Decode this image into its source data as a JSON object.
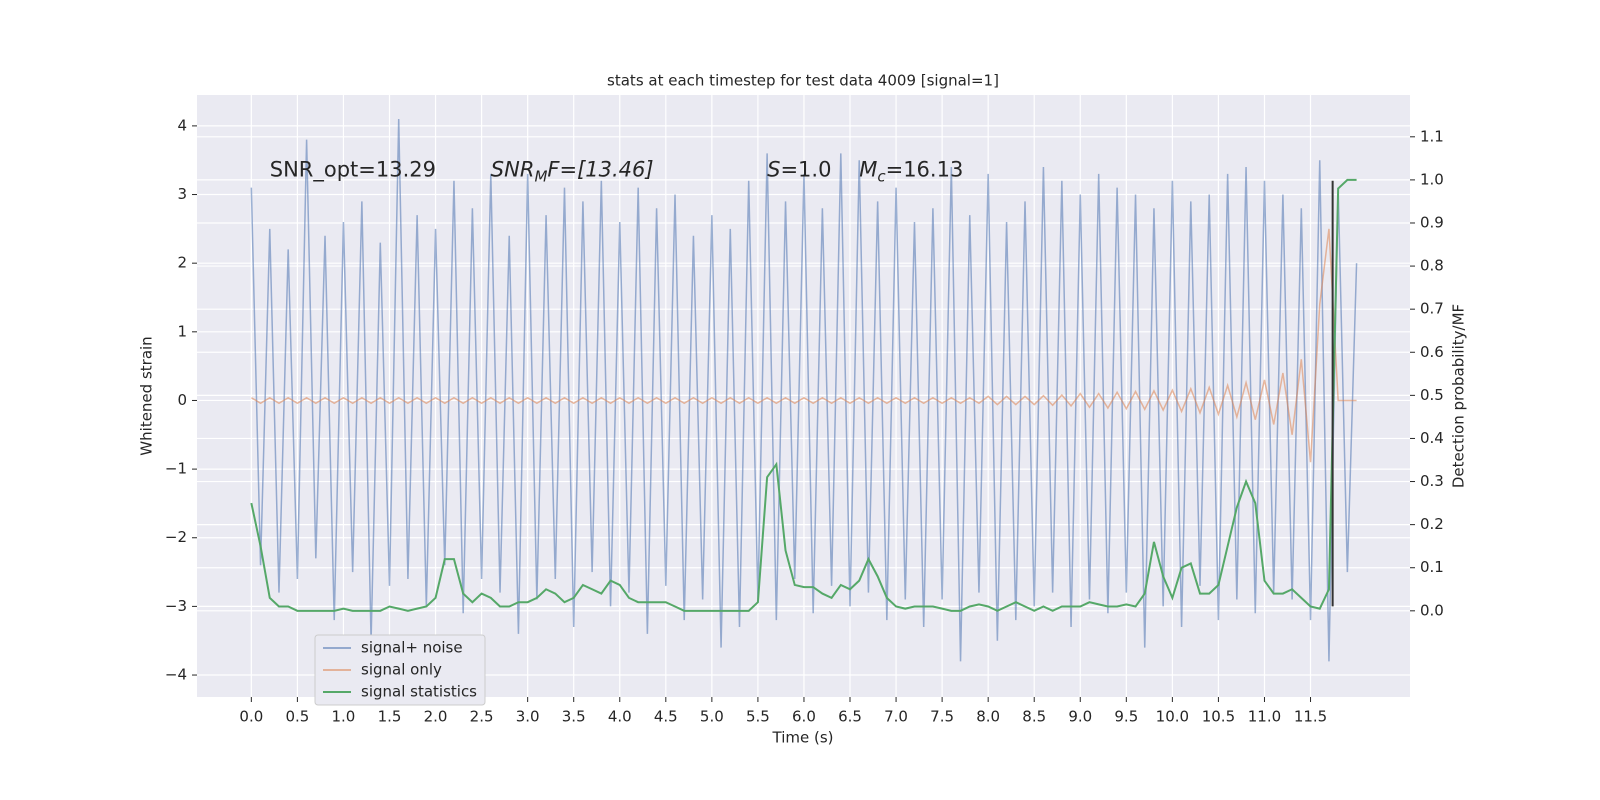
{
  "chart_data": {
    "type": "line",
    "title": "stats at each timestep for test data 4009 [signal=1]",
    "x_label": "Time (s)",
    "y_label": "Whitened strain",
    "y2_label": "Detection probability/MF",
    "annotations": [
      {
        "text": "SNR_opt=13.29",
        "x": 0.2
      },
      {
        "base": "SNR",
        "sub": "M",
        "rest": "F=[13.46]",
        "x": 2.6
      },
      {
        "base": "S",
        "rest": "=1.0",
        "x": 5.6
      },
      {
        "base": "M",
        "sub": "c",
        "rest": "=16.13",
        "x": 6.6
      }
    ],
    "annotation_y": 3.35,
    "vline": {
      "x": 11.74,
      "y_from": -3.0,
      "y_to": 3.2,
      "color": "#333333"
    },
    "x": [
      0,
      0.1,
      0.2,
      0.3,
      0.4,
      0.5,
      0.6,
      0.7,
      0.8,
      0.9,
      1,
      1.1,
      1.2,
      1.3,
      1.4,
      1.5,
      1.6,
      1.7,
      1.8,
      1.9,
      2,
      2.1,
      2.2,
      2.3,
      2.4,
      2.5,
      2.6,
      2.7,
      2.8,
      2.9,
      3,
      3.1,
      3.2,
      3.3,
      3.4,
      3.5,
      3.6,
      3.7,
      3.8,
      3.9,
      4,
      4.1,
      4.2,
      4.3,
      4.4,
      4.5,
      4.6,
      4.7,
      4.8,
      4.9,
      5,
      5.1,
      5.2,
      5.3,
      5.4,
      5.5,
      5.6,
      5.7,
      5.8,
      5.9,
      6,
      6.1,
      6.2,
      6.3,
      6.4,
      6.5,
      6.6,
      6.7,
      6.8,
      6.9,
      7,
      7.1,
      7.2,
      7.3,
      7.4,
      7.5,
      7.6,
      7.7,
      7.8,
      7.9,
      8,
      8.1,
      8.2,
      8.3,
      8.4,
      8.5,
      8.6,
      8.7,
      8.8,
      8.9,
      9,
      9.1,
      9.2,
      9.3,
      9.4,
      9.5,
      9.6,
      9.7,
      9.8,
      9.9,
      10,
      10.1,
      10.2,
      10.3,
      10.4,
      10.5,
      10.6,
      10.7,
      10.8,
      10.9,
      11,
      11.1,
      11.2,
      11.3,
      11.4,
      11.5,
      11.6,
      11.7,
      11.8,
      11.9,
      12
    ],
    "series": [
      {
        "name": "signal+ noise",
        "color": "#4c72b0",
        "axis": "y",
        "values": [
          3.1,
          -2.4,
          2.5,
          -2.8,
          2.2,
          -2.6,
          3.8,
          -2.3,
          2.4,
          -3.2,
          2.6,
          -2.5,
          2.9,
          -3.5,
          2.3,
          -2.7,
          4.1,
          -2.6,
          2.7,
          -3.0,
          2.5,
          -2.4,
          3.2,
          -3.1,
          2.8,
          -2.6,
          3.3,
          -2.8,
          2.4,
          -3.4,
          3.3,
          -2.9,
          2.7,
          -2.6,
          3.1,
          -3.3,
          2.9,
          -2.5,
          3.2,
          -3.0,
          2.6,
          -2.8,
          3.1,
          -3.4,
          2.8,
          -2.7,
          3.0,
          -3.2,
          2.4,
          -2.9,
          2.7,
          -3.6,
          2.5,
          -3.3,
          3.2,
          -2.9,
          3.6,
          -3.2,
          2.9,
          -2.6,
          3.3,
          -3.1,
          2.8,
          -2.7,
          3.6,
          -3.0,
          3.5,
          -2.8,
          2.9,
          -3.2,
          3.1,
          -2.9,
          2.6,
          -3.3,
          2.8,
          -2.9,
          3.4,
          -3.8,
          2.7,
          -2.8,
          3.3,
          -3.5,
          2.6,
          -3.2,
          2.9,
          -3.0,
          3.4,
          -2.8,
          3.2,
          -3.3,
          3.0,
          -2.9,
          3.3,
          -3.1,
          3.1,
          -2.8,
          3.0,
          -3.6,
          2.8,
          -3.0,
          3.2,
          -3.3,
          2.9,
          -2.7,
          3.0,
          -3.2,
          3.3,
          -2.9,
          3.4,
          -3.1,
          3.2,
          -2.8,
          3.0,
          -2.9,
          2.8,
          -3.2,
          3.5,
          -3.8,
          3.1,
          -2.5,
          2.0
        ]
      },
      {
        "name": "signal only",
        "color": "#dd8452",
        "axis": "y",
        "values": [
          0.04,
          -0.04,
          0.04,
          -0.04,
          0.04,
          -0.04,
          0.04,
          -0.04,
          0.04,
          -0.04,
          0.04,
          -0.04,
          0.04,
          -0.04,
          0.04,
          -0.04,
          0.04,
          -0.04,
          0.04,
          -0.04,
          0.04,
          -0.04,
          0.04,
          -0.04,
          0.04,
          -0.04,
          0.04,
          -0.04,
          0.04,
          -0.04,
          0.04,
          -0.04,
          0.04,
          -0.04,
          0.04,
          -0.04,
          0.04,
          -0.04,
          0.04,
          -0.04,
          0.04,
          -0.04,
          0.04,
          -0.04,
          0.04,
          -0.04,
          0.04,
          -0.04,
          0.04,
          -0.04,
          0.04,
          -0.04,
          0.04,
          -0.04,
          0.04,
          -0.04,
          0.04,
          -0.04,
          0.04,
          -0.04,
          0.04,
          -0.04,
          0.04,
          -0.04,
          0.04,
          -0.04,
          0.04,
          -0.04,
          0.04,
          -0.04,
          0.04,
          -0.04,
          0.04,
          -0.04,
          0.04,
          -0.04,
          0.04,
          -0.04,
          0.04,
          -0.04,
          0.06,
          -0.06,
          0.06,
          -0.06,
          0.06,
          -0.06,
          0.07,
          -0.07,
          0.08,
          -0.08,
          0.1,
          -0.1,
          0.1,
          -0.11,
          0.12,
          -0.12,
          0.13,
          -0.13,
          0.14,
          -0.14,
          0.15,
          -0.16,
          0.17,
          -0.18,
          0.19,
          -0.2,
          0.22,
          -0.24,
          0.26,
          -0.28,
          0.3,
          -0.35,
          0.4,
          -0.5,
          0.6,
          -0.9,
          1.4,
          2.5,
          0,
          0,
          0
        ]
      },
      {
        "name": "signal statistics",
        "color": "#55a868",
        "axis": "y2",
        "values": [
          0.25,
          0.15,
          0.03,
          0.01,
          0.01,
          0.0,
          0.0,
          0.0,
          0.0,
          0.0,
          0.005,
          0.0,
          0.0,
          0.0,
          0.0,
          0.01,
          0.005,
          0.0,
          0.005,
          0.01,
          0.03,
          0.12,
          0.12,
          0.04,
          0.02,
          0.04,
          0.03,
          0.01,
          0.01,
          0.02,
          0.02,
          0.03,
          0.05,
          0.04,
          0.02,
          0.03,
          0.06,
          0.05,
          0.04,
          0.07,
          0.06,
          0.03,
          0.02,
          0.02,
          0.02,
          0.02,
          0.01,
          0.0,
          0.0,
          0.0,
          0.0,
          0.0,
          0.0,
          0.0,
          0.0,
          0.02,
          0.31,
          0.34,
          0.14,
          0.06,
          0.055,
          0.055,
          0.04,
          0.03,
          0.06,
          0.05,
          0.07,
          0.12,
          0.08,
          0.03,
          0.01,
          0.005,
          0.01,
          0.01,
          0.01,
          0.005,
          0.0,
          0.0,
          0.01,
          0.015,
          0.01,
          0.0,
          0.01,
          0.02,
          0.01,
          0.0,
          0.01,
          0.0,
          0.01,
          0.01,
          0.01,
          0.02,
          0.015,
          0.01,
          0.01,
          0.015,
          0.01,
          0.04,
          0.16,
          0.08,
          0.03,
          0.1,
          0.11,
          0.04,
          0.04,
          0.06,
          0.15,
          0.24,
          0.3,
          0.25,
          0.07,
          0.04,
          0.04,
          0.05,
          0.03,
          0.01,
          0.005,
          0.05,
          0.98,
          1.0,
          1.0
        ]
      }
    ],
    "xlim": [
      -0.59,
      12.58
    ],
    "ylim": [
      -4.32,
      4.45
    ],
    "y2lim": [
      -0.2,
      1.197
    ],
    "xticks": [
      {
        "value": 0,
        "label": "0.0"
      },
      0.5,
      {
        "value": 1,
        "label": "1.0"
      },
      1.5,
      {
        "value": 2,
        "label": "2.0"
      },
      2.5,
      {
        "value": 3,
        "label": "3.0"
      },
      3.5,
      {
        "value": 4,
        "label": "4.0"
      },
      4.5,
      {
        "value": 5,
        "label": "5.0"
      },
      5.5,
      {
        "value": 6,
        "label": "6.0"
      },
      6.5,
      {
        "value": 7,
        "label": "7.0"
      },
      7.5,
      {
        "value": 8,
        "label": "8.0"
      },
      8.5,
      {
        "value": 9,
        "label": "9.0"
      },
      9.5,
      {
        "value": 10,
        "label": "10.0"
      },
      10.5,
      {
        "value": 11,
        "label": "11.0"
      },
      11.5
    ],
    "yticks": [
      {
        "value": -4,
        "label": "−4"
      },
      {
        "value": -3,
        "label": "−3"
      },
      {
        "value": -2,
        "label": "−2"
      },
      {
        "value": -1,
        "label": "−1"
      },
      0,
      1,
      2,
      3,
      4
    ],
    "y2ticks": [
      {
        "value": 0,
        "label": "0.0"
      },
      0.1,
      0.2,
      0.3,
      0.4,
      0.5,
      0.6,
      0.7,
      0.8,
      0.9,
      {
        "value": 1,
        "label": "1.0"
      },
      1.1
    ],
    "grid": true,
    "legend": "lower left",
    "background": "#eaeaf2"
  }
}
